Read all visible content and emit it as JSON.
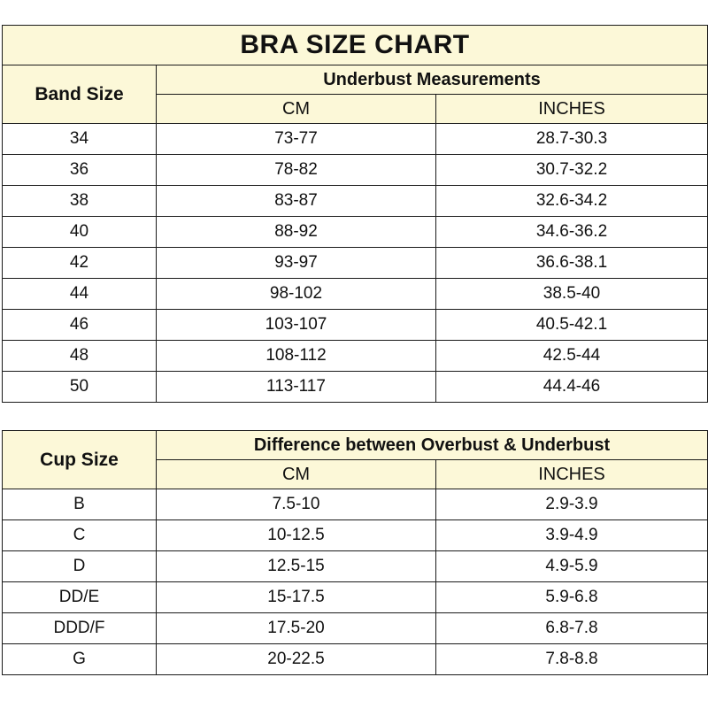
{
  "title": "BRA SIZE CHART",
  "band_table": {
    "row_header": "Band Size",
    "group_header": "Underbust Measurements",
    "col_cm": "CM",
    "col_inches": "INCHES",
    "rows": [
      {
        "size": "34",
        "cm": "73-77",
        "inches": "28.7-30.3"
      },
      {
        "size": "36",
        "cm": "78-82",
        "inches": "30.7-32.2"
      },
      {
        "size": "38",
        "cm": "83-87",
        "inches": "32.6-34.2"
      },
      {
        "size": "40",
        "cm": "88-92",
        "inches": "34.6-36.2"
      },
      {
        "size": "42",
        "cm": "93-97",
        "inches": "36.6-38.1"
      },
      {
        "size": "44",
        "cm": "98-102",
        "inches": "38.5-40"
      },
      {
        "size": "46",
        "cm": "103-107",
        "inches": "40.5-42.1"
      },
      {
        "size": "48",
        "cm": "108-112",
        "inches": "42.5-44"
      },
      {
        "size": "50",
        "cm": "113-117",
        "inches": "44.4-46"
      }
    ]
  },
  "cup_table": {
    "row_header": "Cup Size",
    "group_header": "Difference between Overbust & Underbust",
    "col_cm": "CM",
    "col_inches": "INCHES",
    "rows": [
      {
        "size": "B",
        "cm": "7.5-10",
        "inches": "2.9-3.9"
      },
      {
        "size": "C",
        "cm": "10-12.5",
        "inches": "3.9-4.9"
      },
      {
        "size": "D",
        "cm": "12.5-15",
        "inches": "4.9-5.9"
      },
      {
        "size": "DD/E",
        "cm": "15-17.5",
        "inches": "5.9-6.8"
      },
      {
        "size": "DDD/F",
        "cm": "17.5-20",
        "inches": "6.8-7.8"
      },
      {
        "size": "G",
        "cm": "20-22.5",
        "inches": "7.8-8.8"
      }
    ]
  },
  "colors": {
    "header_background": "#fcf8d8",
    "border": "#1a1a1a"
  }
}
